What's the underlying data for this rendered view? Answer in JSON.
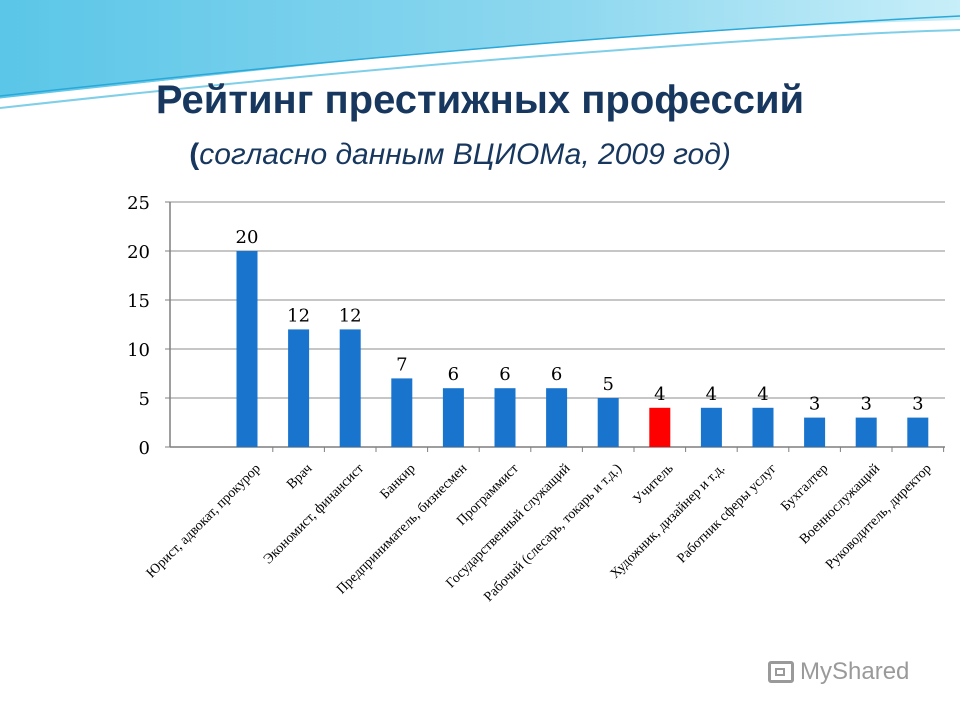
{
  "title": "Рейтинг  престижных профессий",
  "subtitle_open": "(",
  "subtitle_text": "согласно данным ВЦИОМа, 2009 год)",
  "watermark": "MyShared",
  "colors": {
    "bar": "#1874CD",
    "highlight": "#FF0000",
    "title": "#17375E"
  },
  "chart_data": {
    "type": "bar",
    "categories": [
      "Юрист, адвокат, прокурор",
      "Врач",
      "Экономист, финансист",
      "Банкир",
      "Предприниматель, бизнесмен",
      "Программист",
      "Государственный служащий",
      "Рабочий (слесарь, токарь и т.д.)",
      "Учитель",
      "Художник, дизайнер и т.д.",
      "Работник сферы услуг",
      "Бухгалтер",
      "Военнослужащий",
      "Руководитель, директор"
    ],
    "values": [
      20,
      12,
      12,
      7,
      6,
      6,
      6,
      5,
      4,
      4,
      4,
      3,
      3,
      3
    ],
    "highlight_index": 8,
    "ylim": [
      0,
      25
    ],
    "yticks": [
      0,
      5,
      10,
      15,
      20,
      25
    ],
    "grid": true,
    "title": "Рейтинг  престижных профессий",
    "subtitle": "(согласно данным ВЦИОМа, 2009 год)"
  }
}
